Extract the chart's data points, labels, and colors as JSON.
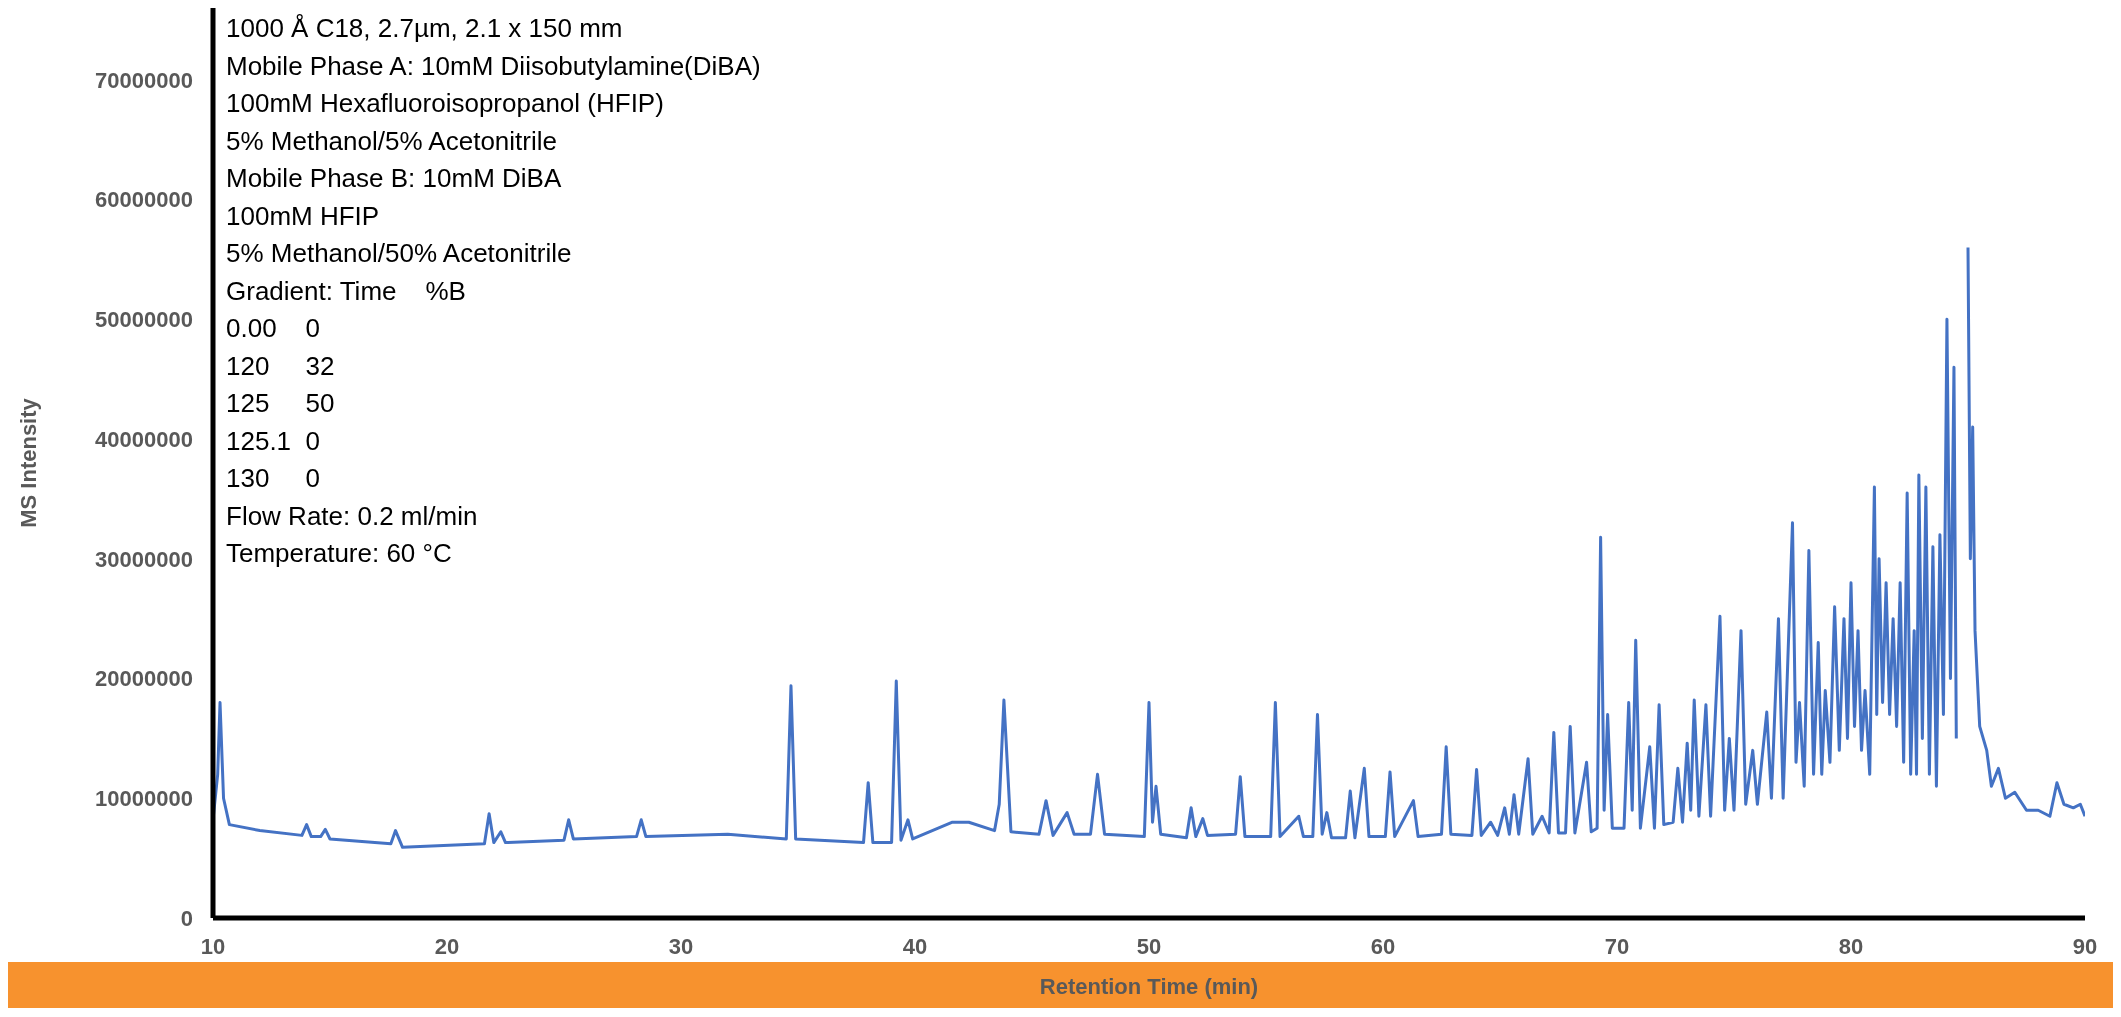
{
  "chart_data": {
    "type": "line",
    "xlabel": "Retention Time (min)",
    "ylabel": "MS Intensity",
    "annotations": [
      "1000 Å C18, 2.7µm, 2.1 x 150 mm",
      "Mobile Phase A: 10mM Diisobutylamine(DiBA)",
      "100mM Hexafluoroisopropanol (HFIP)",
      "5% Methanol/5% Acetonitrile",
      "Mobile Phase B: 10mM DiBA",
      "100mM HFIP",
      "5% Methanol/50% Acetonitrile",
      "Gradient: Time    %B",
      "0.00    0",
      "120     32",
      "125     50",
      "125.1  0",
      "130     0",
      "Flow Rate: 0.2 ml/min",
      "Temperature: 60 °C"
    ],
    "xlim": [
      10,
      90
    ],
    "xticks": [
      10,
      20,
      30,
      40,
      50,
      60,
      70,
      80,
      90
    ],
    "ylim": [
      0,
      76000000
    ],
    "yticks": [
      0,
      10000000,
      20000000,
      30000000,
      40000000,
      50000000,
      60000000,
      70000000
    ],
    "x": [
      10.0,
      10.2,
      10.3,
      10.45,
      10.7,
      12,
      13.8,
      14.0,
      14.2,
      14.6,
      14.8,
      15.0,
      17.6,
      17.8,
      18.1,
      21.6,
      21.8,
      22.0,
      22.3,
      22.5,
      25.0,
      25.2,
      25.4,
      28.1,
      28.3,
      28.5,
      32,
      34.5,
      34.7,
      34.9,
      37.8,
      38.0,
      38.2,
      39.0,
      39.2,
      39.4,
      39.7,
      39.9,
      41.6,
      42.3,
      43.4,
      43.6,
      43.8,
      44.1,
      45.3,
      45.6,
      45.9,
      46.5,
      46.8,
      47.5,
      47.8,
      48.1,
      49.8,
      50.0,
      50.15,
      50.3,
      50.5,
      51.6,
      51.8,
      52.0,
      52.3,
      52.5,
      53.7,
      53.9,
      54.1,
      55.2,
      55.4,
      55.6,
      56.4,
      56.6,
      57.0,
      57.2,
      57.4,
      57.6,
      57.8,
      58.4,
      58.6,
      58.8,
      59.2,
      59.4,
      60.1,
      60.3,
      60.5,
      61.3,
      61.5,
      62.5,
      62.7,
      62.9,
      63.8,
      64.0,
      64.2,
      64.6,
      64.9,
      65.2,
      65.4,
      65.6,
      65.8,
      66.2,
      66.4,
      66.8,
      67.1,
      67.3,
      67.5,
      67.8,
      68.0,
      68.2,
      68.7,
      68.9,
      69.15,
      69.3,
      69.45,
      69.6,
      69.8,
      70.3,
      70.5,
      70.65,
      70.8,
      71.0,
      71.4,
      71.6,
      71.8,
      72.0,
      72.4,
      72.6,
      72.8,
      73.0,
      73.15,
      73.3,
      73.5,
      73.8,
      74.0,
      74.4,
      74.6,
      74.8,
      75.0,
      75.3,
      75.5,
      75.8,
      76.0,
      76.4,
      76.6,
      76.9,
      77.1,
      77.5,
      77.65,
      77.8,
      78.0,
      78.2,
      78.4,
      78.6,
      78.75,
      78.9,
      79.1,
      79.3,
      79.5,
      79.7,
      79.85,
      80.0,
      80.15,
      80.3,
      80.45,
      80.6,
      80.8,
      81.0,
      81.1,
      81.2,
      81.35,
      81.5,
      81.65,
      81.8,
      81.95,
      82.1,
      82.25,
      82.4,
      82.55,
      82.7,
      82.8,
      82.9,
      83.05,
      83.2,
      83.35,
      83.5,
      83.65,
      83.8,
      83.95,
      84.1,
      84.25,
      84.4,
      84.5,
      84.6,
      84.75,
      84.85,
      85.0,
      85.1,
      85.2,
      85.3,
      85.5,
      85.8,
      86.0,
      86.3,
      86.6,
      87.0,
      87.5,
      88.0,
      88.5,
      88.8,
      89.1,
      89.5,
      89.8,
      90
    ],
    "series": [
      {
        "color": "#4472c4",
        "values": [
          8200000,
          12000000,
          18000000,
          10000000,
          7800000,
          7300000,
          6900000,
          7800000,
          6800000,
          6800000,
          7400000,
          6600000,
          6200000,
          7300000,
          5900000,
          6200000,
          8700000,
          6300000,
          7200000,
          6300000,
          6500000,
          8200000,
          6600000,
          6800000,
          8200000,
          6800000,
          7000000,
          6600000,
          19400000,
          6600000,
          6300000,
          11300000,
          6300000,
          6300000,
          19800000,
          6500000,
          8200000,
          6600000,
          8000000,
          8000000,
          7300000,
          9500000,
          18200000,
          7200000,
          7000000,
          9800000,
          6900000,
          8800000,
          7000000,
          7000000,
          12000000,
          7000000,
          6800000,
          18000000,
          8000000,
          11000000,
          7000000,
          6700000,
          9200000,
          6800000,
          8300000,
          6900000,
          7000000,
          11800000,
          6800000,
          6800000,
          18000000,
          6800000,
          8500000,
          6800000,
          6800000,
          17000000,
          7000000,
          8800000,
          6700000,
          6700000,
          10600000,
          6700000,
          12500000,
          6800000,
          6800000,
          12200000,
          6800000,
          9800000,
          6800000,
          7000000,
          14300000,
          7000000,
          6900000,
          12400000,
          6900000,
          8000000,
          6900000,
          9200000,
          7000000,
          10300000,
          7000000,
          13300000,
          7000000,
          8500000,
          7100000,
          15500000,
          7100000,
          7100000,
          16000000,
          7100000,
          13000000,
          7200000,
          7500000,
          31800000,
          9000000,
          17000000,
          7500000,
          7500000,
          18000000,
          9000000,
          23200000,
          7500000,
          14300000,
          7500000,
          17800000,
          7800000,
          8000000,
          12500000,
          8000000,
          14600000,
          9000000,
          18200000,
          8500000,
          17800000,
          8500000,
          25200000,
          9000000,
          15000000,
          9000000,
          24000000,
          9500000,
          14000000,
          9500000,
          17200000,
          10000000,
          25000000,
          10000000,
          33000000,
          13000000,
          18000000,
          11000000,
          30700000,
          12000000,
          23000000,
          12000000,
          19000000,
          13000000,
          26000000,
          14000000,
          25000000,
          15000000,
          28000000,
          16000000,
          24000000,
          14000000,
          19000000,
          12000000,
          36000000,
          17000000,
          30000000,
          18000000,
          28000000,
          17000000,
          25000000,
          16000000,
          28000000,
          13000000,
          35500000,
          12000000,
          24000000,
          12000000,
          37000000,
          15000000,
          36000000,
          12000000,
          31000000,
          11000000,
          32000000,
          17000000,
          50000000,
          20000000,
          46000000,
          15000000,
          null,
          null,
          null,
          56000000,
          30000000,
          41000000,
          24000000,
          16000000,
          14000000,
          11000000,
          12500000,
          10000000,
          10500000,
          9000000,
          9000000,
          8500000,
          11300000,
          9500000,
          9200000,
          9500000,
          8500000
        ]
      }
    ]
  }
}
